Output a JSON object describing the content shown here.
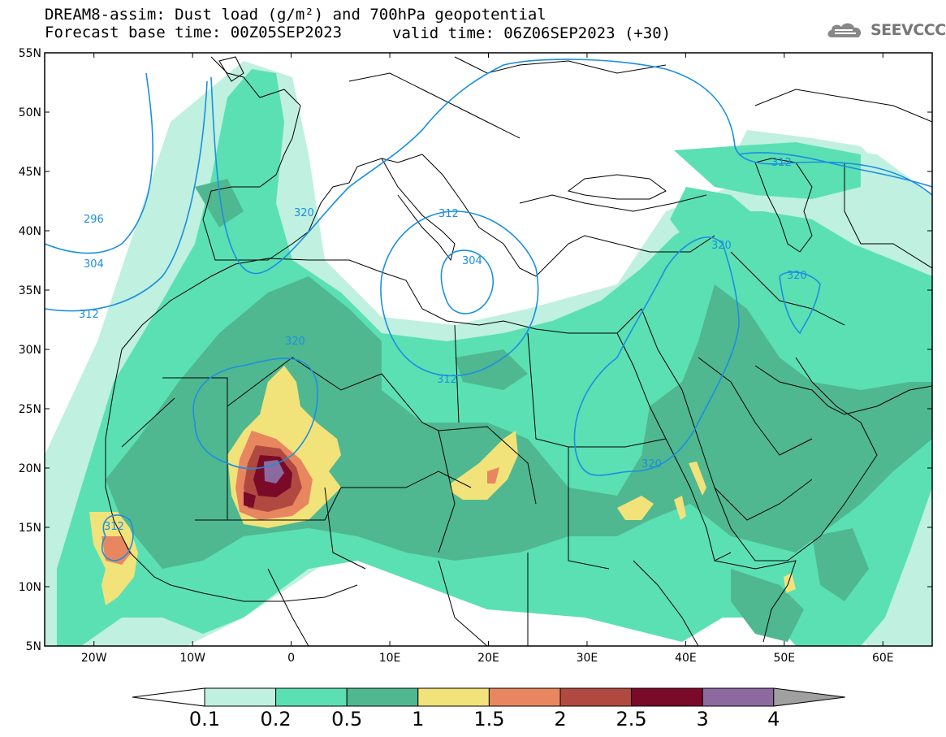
{
  "title": {
    "line1": "DREAM8-assim: Dust load (g/m²) and 700hPa geopotential",
    "line2": "Forecast base time: 00Z05SEP2023",
    "valid": "valid time: 06Z06SEP2023 (+30)"
  },
  "logo": {
    "text": "SEEVCCC",
    "icon": "cloud-logo-icon"
  },
  "map": {
    "lat_labels": [
      "55N",
      "50N",
      "45N",
      "40N",
      "35N",
      "30N",
      "25N",
      "20N",
      "15N",
      "10N",
      "5N"
    ],
    "lon_labels": [
      "20W",
      "10W",
      "0",
      "10E",
      "20E",
      "30E",
      "40E",
      "50E",
      "60E"
    ],
    "lon_range": [
      -25,
      65
    ],
    "lat_range": [
      5,
      55
    ],
    "contour_labels": [
      "296",
      "304",
      "312",
      "320",
      "320",
      "312",
      "304",
      "312",
      "320",
      "312",
      "320",
      "320",
      "312"
    ]
  },
  "colorbar": {
    "labels": [
      "0.1",
      "0.2",
      "0.5",
      "1",
      "1.5",
      "2",
      "2.5",
      "3",
      "4"
    ],
    "colors": [
      "#ffffff",
      "#bff0e0",
      "#5be0b4",
      "#4fb890",
      "#f2e27a",
      "#e8875f",
      "#b04a40",
      "#7a0a28",
      "#8c6aa0",
      "#a0a0a0"
    ]
  },
  "colors": {
    "land_border": "#000000",
    "contour_line": "#1b8fe0",
    "dust_light": "#bff0e0",
    "dust_green": "#5be0b4",
    "dust_dark": "#4fb890",
    "dust_yellow": "#f2e27a",
    "dust_orange": "#e8875f",
    "dust_red": "#b04a40",
    "dust_maroon": "#7a0a28",
    "dust_purple": "#8c6aa0"
  }
}
